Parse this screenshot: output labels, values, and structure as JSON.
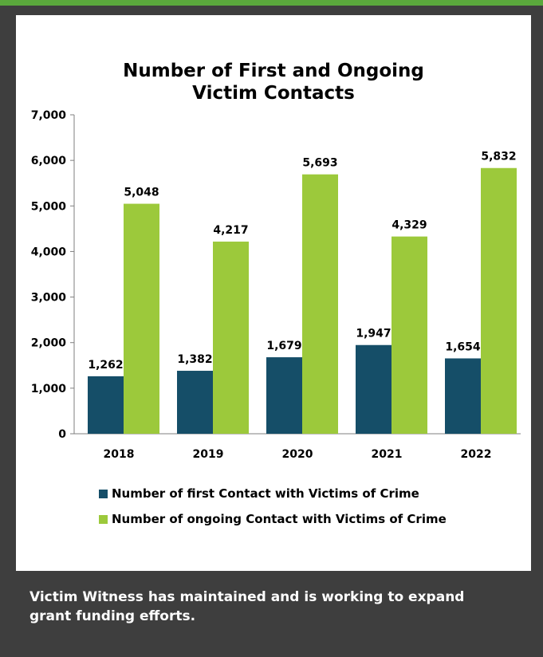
{
  "caption": "Victim Witness has maintained and is working to expand grant funding efforts.",
  "colors": {
    "frame": "#3e3e3e",
    "accent_bar": "#5aa83c",
    "first_series": "#154e68",
    "ongoing_series": "#9cc93b"
  },
  "chart_data": {
    "type": "bar",
    "title_lines": [
      "Number of First and Ongoing",
      "Victim Contacts"
    ],
    "categories": [
      "2018",
      "2019",
      "2020",
      "2021",
      "2022"
    ],
    "series": [
      {
        "name": "Number of first Contact with Victims of Crime",
        "values": [
          1262,
          1382,
          1679,
          1947,
          1654
        ],
        "labels": [
          "1,262",
          "1,382",
          "1,679",
          "1,947",
          "1,654"
        ]
      },
      {
        "name": "Number of ongoing Contact with Victims of Crime",
        "values": [
          5048,
          4217,
          5693,
          4329,
          5832
        ],
        "labels": [
          "5,048",
          "4,217",
          "5,693",
          "4,329",
          "5,832"
        ]
      }
    ],
    "ylim": [
      0,
      7000
    ],
    "y_ticks": [
      0,
      1000,
      2000,
      3000,
      4000,
      5000,
      6000,
      7000
    ],
    "y_tick_labels": [
      "0",
      "1,000",
      "2,000",
      "3,000",
      "4,000",
      "5,000",
      "6,000",
      "7,000"
    ],
    "grid": false,
    "legend_position": "bottom"
  }
}
